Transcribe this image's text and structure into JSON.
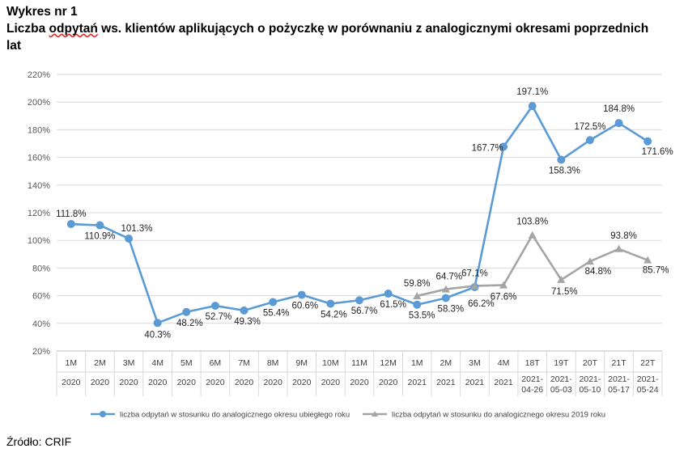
{
  "header": {
    "chart_number": "Wykres nr 1",
    "title_prefix": "Liczba ",
    "title_misspelled": "odpytań",
    "title_suffix": " ws. klientów aplikujących o pożyczkę w porównaniu z analogicznymi okresami poprzednich",
    "title_line2": "lat"
  },
  "source": "Źródło: CRIF",
  "chart_data": {
    "type": "line",
    "title": "Liczba odpytań ws. klientów aplikujących o pożyczkę w porównaniu z analogicznymi okresami poprzednich lat",
    "xlabel": "",
    "ylabel": "",
    "ylim": [
      20,
      220
    ],
    "yticks": [
      "20%",
      "40%",
      "60%",
      "80%",
      "100%",
      "120%",
      "140%",
      "160%",
      "180%",
      "200%",
      "220%"
    ],
    "grid": true,
    "legend_position": "bottom",
    "categories": [
      {
        "top": "1M",
        "bottom": [
          "2020"
        ]
      },
      {
        "top": "2M",
        "bottom": [
          "2020"
        ]
      },
      {
        "top": "3M",
        "bottom": [
          "2020"
        ]
      },
      {
        "top": "4M",
        "bottom": [
          "2020"
        ]
      },
      {
        "top": "5M",
        "bottom": [
          "2020"
        ]
      },
      {
        "top": "6M",
        "bottom": [
          "2020"
        ]
      },
      {
        "top": "7M",
        "bottom": [
          "2020"
        ]
      },
      {
        "top": "8M",
        "bottom": [
          "2020"
        ]
      },
      {
        "top": "9M",
        "bottom": [
          "2020"
        ]
      },
      {
        "top": "10M",
        "bottom": [
          "2020"
        ]
      },
      {
        "top": "11M",
        "bottom": [
          "2020"
        ]
      },
      {
        "top": "12M",
        "bottom": [
          "2020"
        ]
      },
      {
        "top": "1M",
        "bottom": [
          "2021"
        ]
      },
      {
        "top": "2M",
        "bottom": [
          "2021"
        ]
      },
      {
        "top": "3M",
        "bottom": [
          "2021"
        ]
      },
      {
        "top": "4M",
        "bottom": [
          "2021"
        ]
      },
      {
        "top": "18T",
        "bottom": [
          "2021-",
          "04-26"
        ]
      },
      {
        "top": "19T",
        "bottom": [
          "2021-",
          "05-03"
        ]
      },
      {
        "top": "20T",
        "bottom": [
          "2021-",
          "05-10"
        ]
      },
      {
        "top": "21T",
        "bottom": [
          "2021-",
          "05-17"
        ]
      },
      {
        "top": "22T",
        "bottom": [
          "2021-",
          "05-24"
        ]
      }
    ],
    "series": [
      {
        "name": "liczba odpytań w stosunku do analogicznego okresu ubiegłego roku",
        "color": "#5b9bd5",
        "marker": "circle",
        "values": [
          111.8,
          110.9,
          101.3,
          40.3,
          48.2,
          52.7,
          49.3,
          55.4,
          60.6,
          54.2,
          56.7,
          61.5,
          53.5,
          58.3,
          66.2,
          167.7,
          197.1,
          158.3,
          172.5,
          184.8,
          171.6
        ],
        "labels": [
          "111.8%",
          "110.9%",
          "101.3%",
          "40.3%",
          "48.2%",
          "52.7%",
          "49.3%",
          "55.4%",
          "60.6%",
          "54.2%",
          "56.7%",
          "61.5%",
          "53.5%",
          "58.3%",
          "66.2%",
          "167.7%",
          "197.1%",
          "158.3%",
          "172.5%",
          "184.8%",
          "171.6%"
        ]
      },
      {
        "name": "liczba odpytań w stosunku do analogicznego okresu 2019 roku",
        "color": "#a5a5a5",
        "marker": "triangle",
        "values": [
          null,
          null,
          null,
          null,
          null,
          null,
          null,
          null,
          null,
          null,
          null,
          null,
          59.8,
          64.7,
          67.1,
          67.6,
          103.8,
          71.5,
          84.8,
          93.8,
          85.7
        ],
        "labels": [
          null,
          null,
          null,
          null,
          null,
          null,
          null,
          null,
          null,
          null,
          null,
          null,
          "59.8%",
          "64.7%",
          "67.1%",
          "67.6%",
          "103.8%",
          "71.5%",
          "84.8%",
          "93.8%",
          "85.7%"
        ]
      }
    ]
  }
}
